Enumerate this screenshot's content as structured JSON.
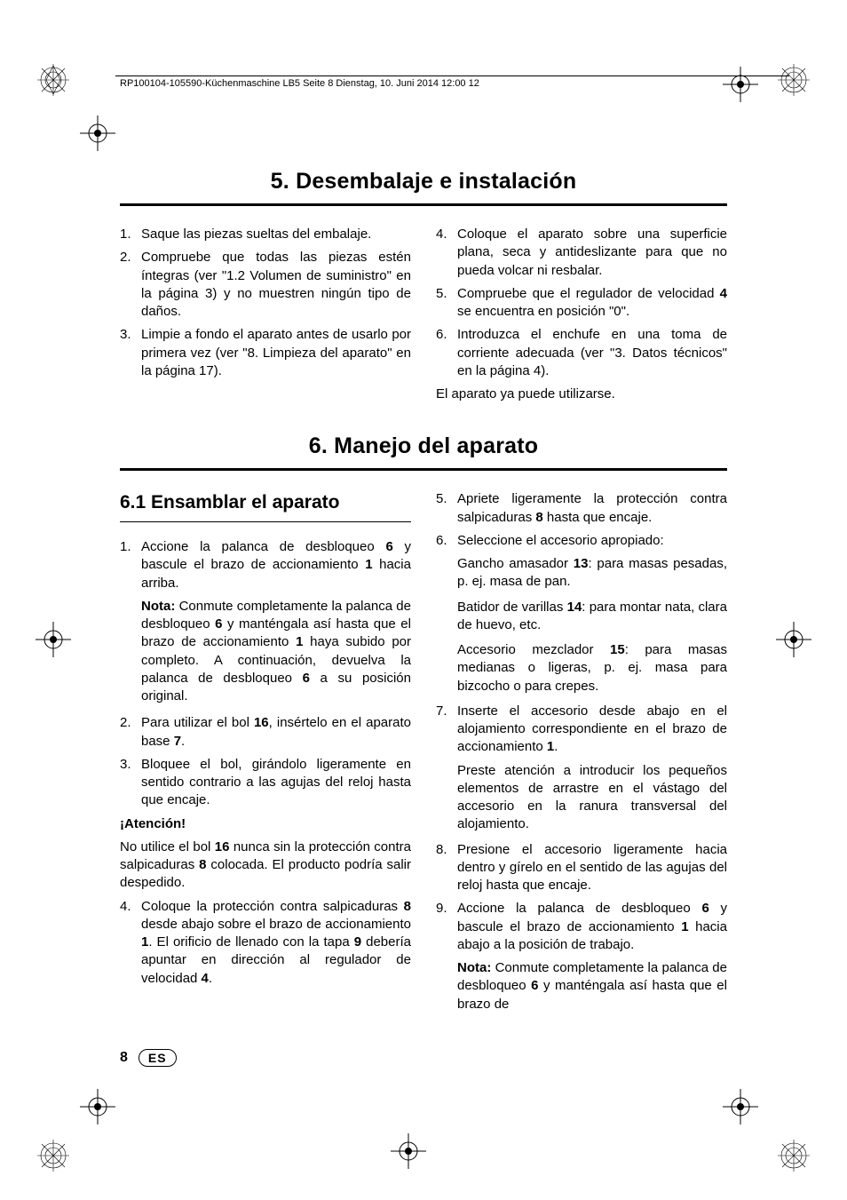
{
  "header": {
    "running_head": "RP100104-105590-Küchenmaschine LB5  Seite 8  Dienstag, 10. Juni 2014  12:00 12"
  },
  "section5": {
    "title": "5. Desembalaje e instalación",
    "left": [
      {
        "n": "1.",
        "t": "Saque las piezas sueltas del embalaje."
      },
      {
        "n": "2.",
        "t": "Compruebe que todas las piezas estén íntegras (ver \"1.2 Volumen de suministro\" en la página 3) y no muestren ningún tipo de daños."
      },
      {
        "n": "3.",
        "t": "Limpie a fondo el aparato antes de usarlo por primera vez (ver \"8. Limpieza del aparato\" en la página 17)."
      }
    ],
    "right": [
      {
        "n": "4.",
        "t": "Coloque el aparato sobre una superficie plana, seca y antideslizante para que no pueda volcar ni resbalar."
      },
      {
        "n": "5.",
        "t": "Compruebe que el regulador de velocidad <b>4</b> se encuentra en posición \"0\"."
      },
      {
        "n": "6.",
        "t": "Introduzca el enchufe en una toma de corriente adecuada (ver \"3. Datos técnicos\" en la página 4)."
      }
    ],
    "right_tail": "El aparato ya puede utilizarse."
  },
  "section6": {
    "title": "6. Manejo del aparato",
    "sub1": {
      "heading": "6.1 Ensamblar el aparato",
      "items_a": [
        {
          "n": "1.",
          "t": "Accione la palanca de desbloqueo <b>6</b> y bascule el brazo de accionamiento <b>1</b> hacia arriba."
        }
      ],
      "note1": "<b>Nota:</b> Conmute completamente la palanca de desbloqueo <b>6</b> y manténgala así hasta que el brazo de accionamiento <b>1</b> haya subido por completo. A continuación, devuelva la palanca de desbloqueo <b>6</b> a su posición original.",
      "items_b": [
        {
          "n": "2.",
          "t": "Para utilizar el bol <b>16</b>, insértelo en el aparato base <b>7</b>."
        },
        {
          "n": "3.",
          "t": "Bloquee el bol, girándolo ligeramente en sentido contrario a las agujas del reloj hasta que encaje."
        }
      ],
      "warn_head": "¡Atención!",
      "warn_body": "No utilice el bol <b>16</b> nunca sin la protección contra salpicaduras <b>8</b> colocada. El producto podría salir despedido.",
      "items_c": [
        {
          "n": "4.",
          "t": "Coloque la protección contra salpicaduras <b>8</b> desde abajo sobre el brazo de accionamiento <b>1</b>. El orificio de llenado con la tapa <b>9</b> debería apuntar en dirección al regulador de velocidad <b>4</b>."
        }
      ]
    },
    "right": {
      "items_d": [
        {
          "n": "5.",
          "t": "Apriete ligeramente la protección contra salpicaduras <b>8</b> hasta que encaje."
        },
        {
          "n": "6.",
          "t": "Seleccione el accesorio apropiado:"
        }
      ],
      "acc1": "Gancho amasador <b>13</b>: para masas pesadas, p. ej. masa de pan.",
      "acc2": "Batidor de varillas <b>14</b>: para montar nata, clara de huevo, etc.",
      "acc3": "Accesorio mezclador <b>15</b>: para masas medianas o ligeras, p. ej. masa para bizcocho o para crepes.",
      "items_e": [
        {
          "n": "7.",
          "t": "Inserte el accesorio desde abajo en el alojamiento correspondiente en el brazo de accionamiento <b>1</b>."
        }
      ],
      "note7": "Preste atención a introducir los pequeños elementos de arrastre en el vástago del accesorio en la ranura transversal del alojamiento.",
      "items_f": [
        {
          "n": "8.",
          "t": "Presione el accesorio ligeramente hacia dentro y gírelo en el sentido de las agujas del reloj hasta que encaje."
        },
        {
          "n": "9.",
          "t": "Accione la palanca de desbloqueo <b>6</b> y bascule el brazo de accionamiento <b>1</b> hacia abajo a la posición de trabajo."
        }
      ],
      "note9": "<b>Nota:</b> Conmute completamente la palanca de desbloqueo <b>6</b> y manténgala así hasta que el brazo de"
    }
  },
  "footer": {
    "page": "8",
    "lang": "ES"
  }
}
